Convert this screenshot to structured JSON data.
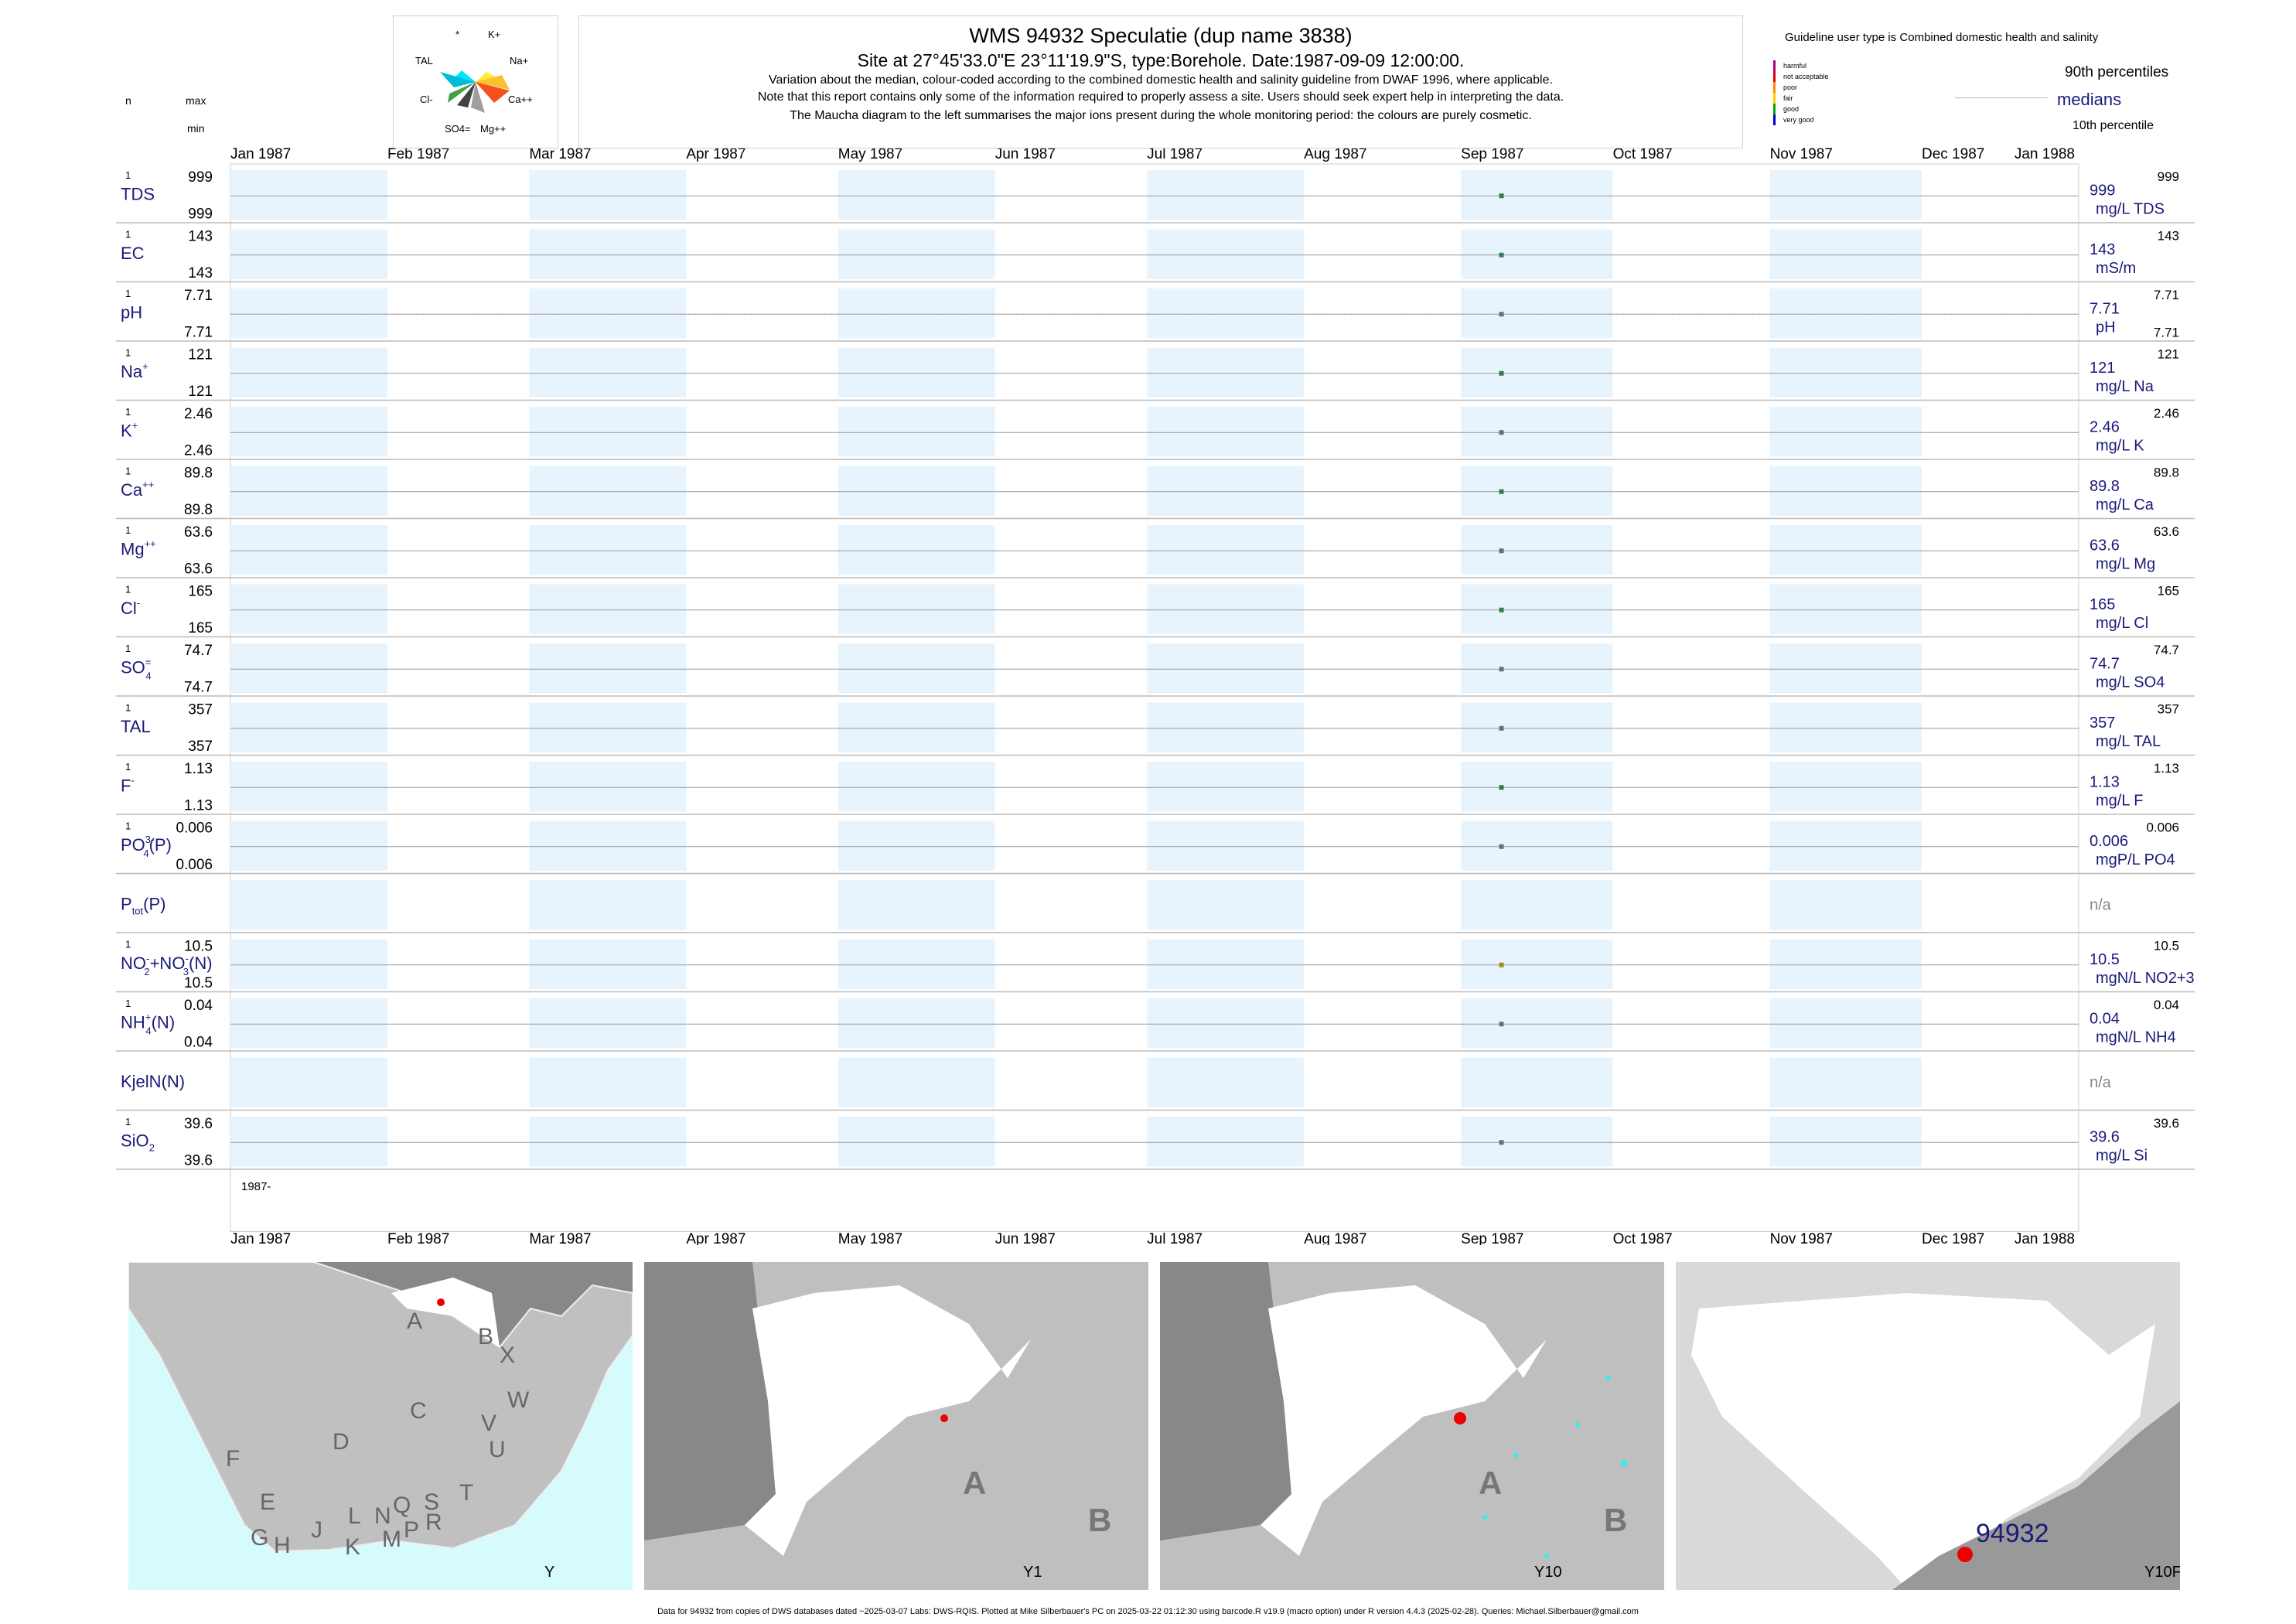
{
  "header": {
    "title": "WMS 94932  Speculatie (dup name 3838)",
    "site": "Site at 27°45'33.0\"E 23°11'19.9\"S, type:Borehole. Date:1987-09-09 12:00:00.",
    "note1": "Variation about the median,  colour-coded according to the combined domestic health and salinity guideline from DWAF 1996, where applicable.",
    "note2": "Note that this report contains only some of the information required to properly assess a site. Users should seek expert help in interpreting the data.",
    "note3": "The Maucha diagram to the left summarises the major ions present during the whole monitoring period: the colours are purely cosmetic."
  },
  "maucha": {
    "labels": [
      "*",
      "K+",
      "TAL",
      "Na+",
      "Cl-",
      "Ca++",
      "SO4=",
      "Mg++"
    ]
  },
  "legend": {
    "guideline_text": "Guideline user type is Combined domestic health and salinity",
    "classes": [
      {
        "label": "harmful",
        "color": "#aa0088"
      },
      {
        "label": "not acceptable",
        "color": "#dd0000"
      },
      {
        "label": "poor",
        "color": "#ff8800"
      },
      {
        "label": "fair",
        "color": "#ffcc00"
      },
      {
        "label": "good",
        "color": "#00aa00"
      },
      {
        "label": "very good",
        "color": "#0000cc"
      }
    ],
    "p90": "90th percentiles",
    "medians": "medians",
    "p10": "10th percentile"
  },
  "left_header": {
    "n": "n",
    "max": "max",
    "min": "min"
  },
  "months": [
    "Jan 1987",
    "Feb 1987",
    "Mar 1987",
    "Apr 1987",
    "May 1987",
    "Jun 1987",
    "Jul 1987",
    "Aug 1987",
    "Sep 1987",
    "Oct 1987",
    "Nov 1987",
    "Dec 1987",
    "Jan 1988"
  ],
  "year_label": "1987-",
  "chart_data": {
    "type": "scatter",
    "x_range": [
      "1987-01-01",
      "1988-01-01"
    ],
    "sample_date": "1987-09-09",
    "colors": {
      "green": "#2e7d4f",
      "grey": "#6e6e6e",
      "olive": "#a08a1e"
    },
    "panels": [
      {
        "name": "TDS",
        "sup": "",
        "sub": "",
        "n": "1",
        "max": "999",
        "min": "999",
        "value": 999,
        "value_text": "999",
        "unit": "mg/L TDS",
        "p90": "999",
        "p10": "",
        "color": "green"
      },
      {
        "name": "EC",
        "sup": "",
        "sub": "",
        "n": "1",
        "max": "143",
        "min": "143",
        "value": 143,
        "value_text": "143",
        "unit": "mS/m",
        "p90": "143",
        "p10": "",
        "color": "green"
      },
      {
        "name": "pH",
        "sup": "",
        "sub": "",
        "n": "1",
        "max": "7.71",
        "min": "7.71",
        "value": 7.71,
        "value_text": "7.71",
        "unit": "pH",
        "p90": "7.71",
        "p10": "7.71",
        "color": "grey"
      },
      {
        "name": "Na",
        "sup": "+",
        "sub": "",
        "n": "1",
        "max": "121",
        "min": "121",
        "value": 121,
        "value_text": "121",
        "unit": "mg/L Na",
        "p90": "121",
        "p10": "",
        "color": "green"
      },
      {
        "name": "K",
        "sup": "+",
        "sub": "",
        "n": "1",
        "max": "2.46",
        "min": "2.46",
        "value": 2.46,
        "value_text": "2.46",
        "unit": "mg/L K",
        "p90": "2.46",
        "p10": "",
        "color": "grey"
      },
      {
        "name": "Ca",
        "sup": "++",
        "sub": "",
        "n": "1",
        "max": "89.8",
        "min": "89.8",
        "value": 89.8,
        "value_text": "89.8",
        "unit": "mg/L Ca",
        "p90": "89.8",
        "p10": "",
        "color": "green"
      },
      {
        "name": "Mg",
        "sup": "++",
        "sub": "",
        "n": "1",
        "max": "63.6",
        "min": "63.6",
        "value": 63.6,
        "value_text": "63.6",
        "unit": "mg/L Mg",
        "p90": "63.6",
        "p10": "",
        "color": "grey"
      },
      {
        "name": "Cl",
        "sup": "-",
        "sub": "",
        "n": "1",
        "max": "165",
        "min": "165",
        "value": 165,
        "value_text": "165",
        "unit": "mg/L Cl",
        "p90": "165",
        "p10": "",
        "color": "green"
      },
      {
        "name": "SO",
        "sup": "=",
        "sub": "4",
        "n": "1",
        "max": "74.7",
        "min": "74.7",
        "value": 74.7,
        "value_text": "74.7",
        "unit": "mg/L SO4",
        "p90": "74.7",
        "p10": "",
        "color": "grey"
      },
      {
        "name": "TAL",
        "sup": "",
        "sub": "",
        "n": "1",
        "max": "357",
        "min": "357",
        "value": 357,
        "value_text": "357",
        "unit": "mg/L TAL",
        "p90": "357",
        "p10": "",
        "color": "grey"
      },
      {
        "name": "F",
        "sup": "-",
        "sub": "",
        "n": "1",
        "max": "1.13",
        "min": "1.13",
        "value": 1.13,
        "value_text": "1.13",
        "unit": "mg/L F",
        "p90": "1.13",
        "p10": "",
        "color": "green"
      },
      {
        "name": "PO",
        "sup": "3-",
        "sub": "4",
        "suffix": "(P)",
        "n": "1",
        "max": "0.006",
        "min": "0.006",
        "value": 0.006,
        "value_text": "0.006",
        "unit": "mgP/L PO4",
        "p90": "0.006",
        "p10": "",
        "color": "grey"
      },
      {
        "name": "P",
        "sup": "",
        "sub": "tot",
        "suffix": "(P)",
        "n": "",
        "max": "",
        "min": "",
        "value": null,
        "value_text": "n/a",
        "unit": "",
        "p90": "",
        "p10": "",
        "color": "grey"
      },
      {
        "name": "NO2+NO3(N)",
        "sup": "",
        "sub": "",
        "n": "1",
        "max": "10.5",
        "min": "10.5",
        "value": 10.5,
        "value_text": "10.5",
        "unit": "mgN/L NO2+3",
        "p90": "10.5",
        "p10": "",
        "color": "olive",
        "special": "no"
      },
      {
        "name": "NH",
        "sup": "+",
        "sub": "4",
        "suffix": "(N)",
        "n": "1",
        "max": "0.04",
        "min": "0.04",
        "value": 0.04,
        "value_text": "0.04",
        "unit": "mgN/L NH4",
        "p90": "0.04",
        "p10": "",
        "color": "grey"
      },
      {
        "name": "KjelN(N)",
        "sup": "",
        "sub": "",
        "n": "",
        "max": "",
        "min": "",
        "value": null,
        "value_text": "n/a",
        "unit": "",
        "p90": "",
        "p10": "",
        "color": "grey"
      },
      {
        "name": "SiO",
        "sup": "",
        "sub": "2",
        "n": "1",
        "max": "39.6",
        "min": "39.6",
        "value": 39.6,
        "value_text": "39.6",
        "unit": "mg/L Si",
        "p90": "39.6",
        "p10": "",
        "color": "grey"
      }
    ]
  },
  "maps": {
    "map1": {
      "labels": [
        "A",
        "B",
        "X",
        "W",
        "C",
        "V",
        "U",
        "D",
        "T",
        "F",
        "E",
        "L",
        "N",
        "Q",
        "S",
        "R",
        "G",
        "H",
        "J",
        "K",
        "M",
        "P"
      ],
      "caption": "Y"
    },
    "map2": {
      "labels": [
        "A",
        "B"
      ],
      "caption": "Y1"
    },
    "map3": {
      "labels": [
        "A",
        "B"
      ],
      "caption": "Y10"
    },
    "map4": {
      "site_label": "94932",
      "caption": "Y10F"
    }
  },
  "footer": "Data for 94932 from copies of DWS databases dated ~2025-03-07 Labs: DWS-RQIS. Plotted at Mike Silberbauer's PC on 2025-03-22 01:12:30 using barcode.R v19.9 (macro option) under R version 4.4.3 (2025-02-28). Queries: Michael.Silberbauer@gmail.com"
}
